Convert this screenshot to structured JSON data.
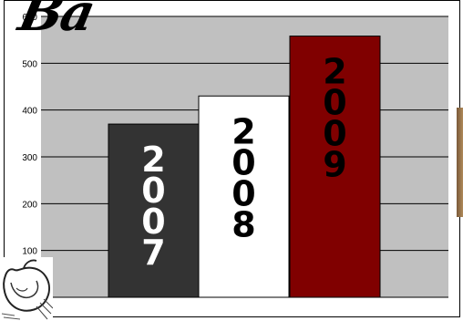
{
  "title_fragment": "Ba",
  "chart_data": {
    "type": "bar",
    "categories": [
      "2007",
      "2008",
      "2009"
    ],
    "values": [
      370,
      430,
      558
    ],
    "bar_colors": [
      "#333333",
      "#ffffff",
      "#800000"
    ],
    "label_colors": [
      "#ffffff",
      "#000000",
      "#000000"
    ],
    "ylim": [
      0,
      600
    ],
    "yticks": [
      100,
      200,
      300,
      400,
      500,
      600
    ],
    "grid": true,
    "plot_background": "#c0c0c0"
  }
}
